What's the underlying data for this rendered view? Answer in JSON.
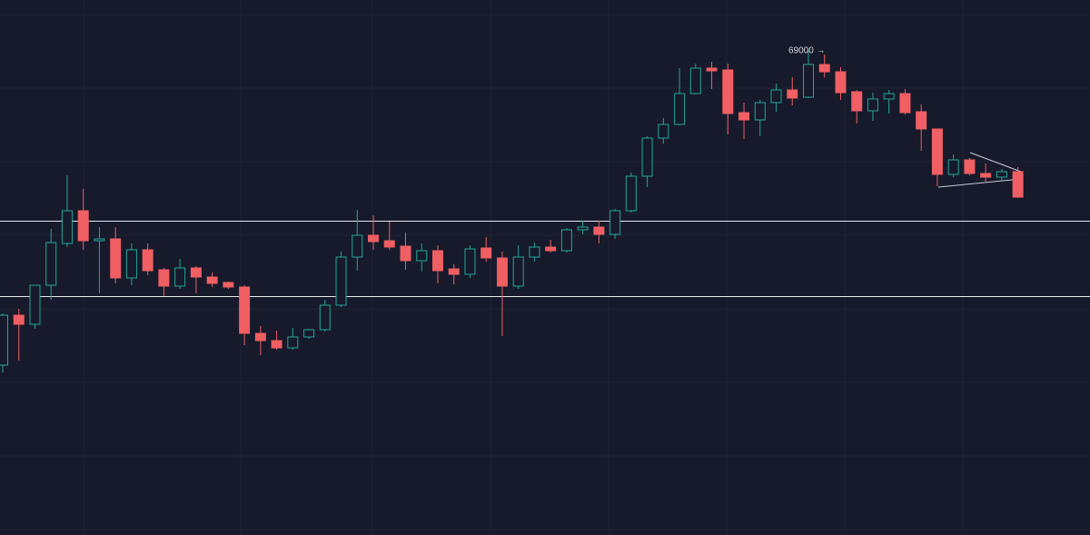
{
  "chart_data": {
    "type": "candlestick",
    "ylim": [
      2375,
      76000
    ],
    "up_color": "#26a69a",
    "down_color": "#ef5f63",
    "level_color": "#e8eaf0",
    "open": [
      25750,
      32625,
      31375,
      36750,
      42500,
      47000,
      42875,
      43125,
      37750,
      41625,
      38875,
      36625,
      39125,
      37875,
      37125,
      36500,
      30125,
      29125,
      28125,
      29625,
      30625,
      34000,
      40625,
      43625,
      42875,
      42125,
      40125,
      41500,
      39000,
      38250,
      41875,
      40500,
      36625,
      40625,
      42000,
      41500,
      44375,
      44750,
      43750,
      47000,
      51750,
      57000,
      58875,
      63125,
      66625,
      66375,
      60500,
      59500,
      61875,
      63625,
      62625,
      67125,
      66125,
      63375,
      60750,
      62375,
      63125,
      60625,
      58250,
      52000,
      54000,
      52125,
      51625,
      52375
    ],
    "high": [
      32875,
      33500,
      36750,
      44500,
      51875,
      50000,
      44750,
      44750,
      42500,
      42500,
      39125,
      40375,
      39375,
      38500,
      37250,
      36750,
      31125,
      30500,
      30875,
      30750,
      34750,
      41375,
      47125,
      46375,
      45500,
      44000,
      42500,
      42250,
      39625,
      42250,
      43375,
      41375,
      42250,
      42625,
      43000,
      44625,
      45625,
      45625,
      47250,
      52250,
      57250,
      59750,
      66625,
      67250,
      67500,
      67250,
      61875,
      62250,
      64500,
      65375,
      69000,
      68500,
      66750,
      63625,
      63250,
      63625,
      63750,
      61625,
      58250,
      54750,
      54250,
      53500,
      52750,
      53000
    ],
    "low": [
      24750,
      26375,
      30750,
      34750,
      42000,
      41625,
      35625,
      37000,
      36750,
      38125,
      35250,
      36250,
      35625,
      36500,
      36250,
      28500,
      27125,
      27875,
      27875,
      29375,
      30375,
      33750,
      38750,
      41625,
      41625,
      38875,
      38625,
      37000,
      36875,
      37750,
      40000,
      29750,
      36250,
      40000,
      41250,
      41250,
      43750,
      42500,
      43125,
      46750,
      50250,
      56250,
      58750,
      63000,
      63750,
      57500,
      56875,
      57250,
      60625,
      61500,
      62500,
      65375,
      62250,
      59000,
      59375,
      60375,
      60250,
      55250,
      50375,
      51625,
      51875,
      51000,
      51000,
      48750
    ],
    "close": [
      32625,
      31375,
      36750,
      42625,
      47000,
      42875,
      43125,
      37750,
      41625,
      38750,
      36625,
      39125,
      37875,
      37000,
      36500,
      30125,
      29125,
      28125,
      29625,
      30625,
      34000,
      40625,
      43625,
      42750,
      42000,
      40125,
      41500,
      38750,
      38250,
      41750,
      40500,
      36625,
      40625,
      42000,
      41500,
      44375,
      44750,
      43750,
      47000,
      51750,
      57000,
      58875,
      63125,
      66625,
      66250,
      60375,
      59500,
      61875,
      63625,
      62500,
      67125,
      66125,
      63250,
      60750,
      62375,
      63125,
      60500,
      58250,
      52000,
      54000,
      52125,
      51625,
      52375,
      48875
    ],
    "levels": [
      45625,
      35250
    ],
    "annotation": {
      "label": "69000 →",
      "value": 69000
    }
  }
}
